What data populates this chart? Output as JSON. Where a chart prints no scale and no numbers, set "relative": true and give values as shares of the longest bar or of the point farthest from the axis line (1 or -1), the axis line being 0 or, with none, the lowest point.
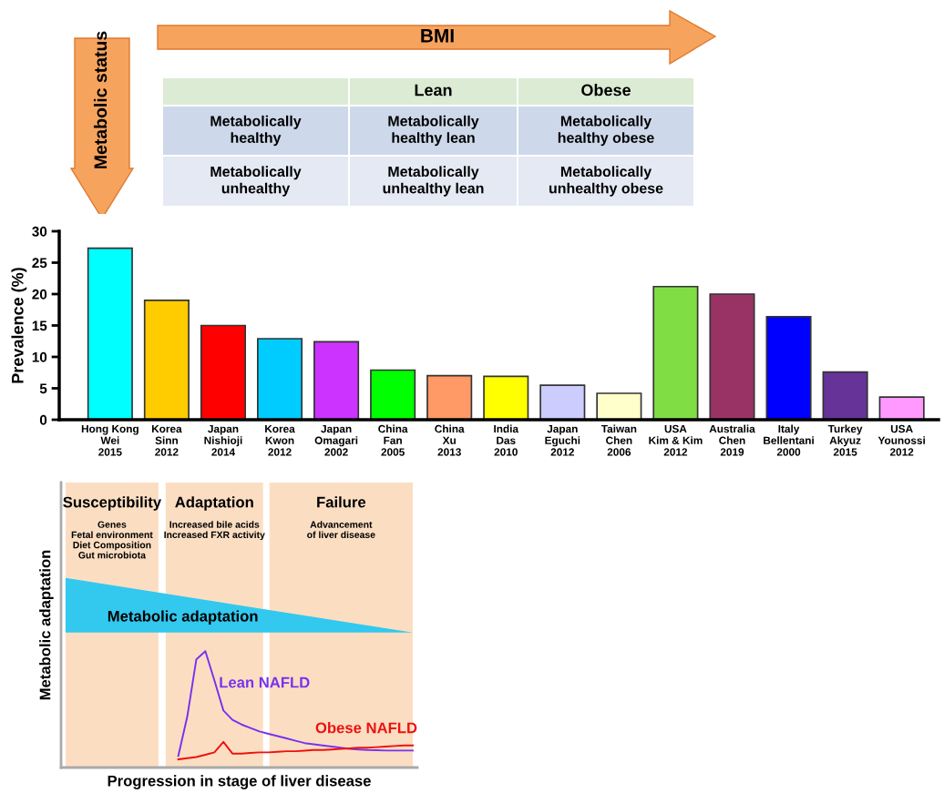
{
  "chart_data": [
    {
      "type": "other",
      "xlabel": "BMI",
      "ylabel": "Metabolic status",
      "categories": [
        null,
        "Lean",
        "Obese"
      ],
      "annotations": [
        "Metabolically\nhealthy",
        "Metabolically\nhealthy lean",
        "Metabolically\nhealthy obese",
        "Metabolically\nunhealthy",
        "Metabolically\nunhealthy lean",
        "Metabolically\nunhealthy obese"
      ]
    },
    {
      "type": "bar",
      "ylabel": "Prevalence (%)",
      "categories": [
        "Hong Kong\nWei\n2015",
        "Korea\nSinn\n2012",
        "Japan\nNishioji\n2014",
        "Korea\nKwon\n2012",
        "Japan\nOmagari\n2002",
        "China\nFan\n2005",
        "China\nXu\n2013",
        "India\nDas\n2010",
        "Japan\nEguchi\n2012",
        "Taiwan\nChen\n2006",
        "USA\nKim & Kim\n2012",
        "Australia\nChen\n2019",
        "Italy\nBellentani\n2000",
        "Turkey\nAkyuz\n2015",
        "USA\nYounossi\n2012"
      ],
      "values": [
        27.3,
        19.0,
        15.0,
        12.9,
        12.4,
        7.9,
        7.0,
        6.9,
        5.5,
        4.2,
        21.2,
        20.0,
        16.4,
        7.6,
        3.6
      ],
      "colors": [
        "#00ffff",
        "#ffcc00",
        "#ff0000",
        "#00ccff",
        "#cc33ff",
        "#00ff00",
        "#ff9966",
        "#ffff00",
        "#ccccff",
        "#ffffcc",
        "#80dd44",
        "#993366",
        "#0000ff",
        "#663399",
        "#ff99ff"
      ],
      "ylim": [
        0,
        30
      ],
      "yticks": [
        0,
        5,
        10,
        15,
        20,
        25,
        30
      ],
      "grid": false,
      "legend": false
    },
    {
      "type": "line",
      "relative": true,
      "xlabel": "Progression in stage of liver disease",
      "ylabel": "Metabolic adaptation",
      "categories": [
        null,
        null,
        null,
        null,
        null,
        null,
        null,
        null,
        null,
        null,
        null,
        null,
        null,
        null,
        null,
        null,
        null,
        null,
        null,
        null,
        null,
        null,
        null,
        null,
        null,
        null,
        null,
        null,
        null,
        null,
        null,
        null,
        null,
        null,
        null,
        null,
        null,
        null,
        null,
        null
      ],
      "series": [
        {
          "name": "Lean NAFLD",
          "color": "#7733ee",
          "values": [
            null,
            null,
            null,
            null,
            null,
            null,
            null,
            null,
            null,
            null,
            null,
            null,
            null,
            0.1,
            0.44,
            0.93,
            1,
            0.75,
            0.49,
            0.41,
            0.37,
            0.34,
            0.31,
            0.29,
            0.27,
            0.25,
            0.23,
            0.21,
            0.2,
            0.19,
            0.18,
            0.17,
            0.16,
            0.155,
            0.15,
            0.148,
            0.146,
            0.146,
            0.146,
            0.146
          ]
        },
        {
          "name": "Obese NAFLD",
          "color": "#ee1111",
          "values": [
            null,
            null,
            null,
            null,
            null,
            null,
            null,
            null,
            null,
            null,
            null,
            null,
            null,
            0.07,
            0.08,
            0.09,
            0.11,
            0.13,
            0.22,
            0.12,
            0.12,
            0.125,
            0.13,
            0.13,
            0.135,
            0.14,
            0.14,
            0.145,
            0.15,
            0.15,
            0.155,
            0.16,
            0.165,
            0.17,
            0.17,
            0.175,
            0.18,
            0.185,
            0.19,
            0.19
          ]
        }
      ],
      "annotations": [
        "Susceptibility",
        "Genes\nFetal environment\nDiet Composition\nGut microbiota",
        "Adaptation",
        "Increased bile acids\nIncreased FXR activity",
        "Failure",
        "Advancement\nof liver disease",
        "Metabolic adaptation"
      ],
      "legend": false,
      "tick_labels": false,
      "line_style": "solid",
      "marker": "none"
    }
  ]
}
